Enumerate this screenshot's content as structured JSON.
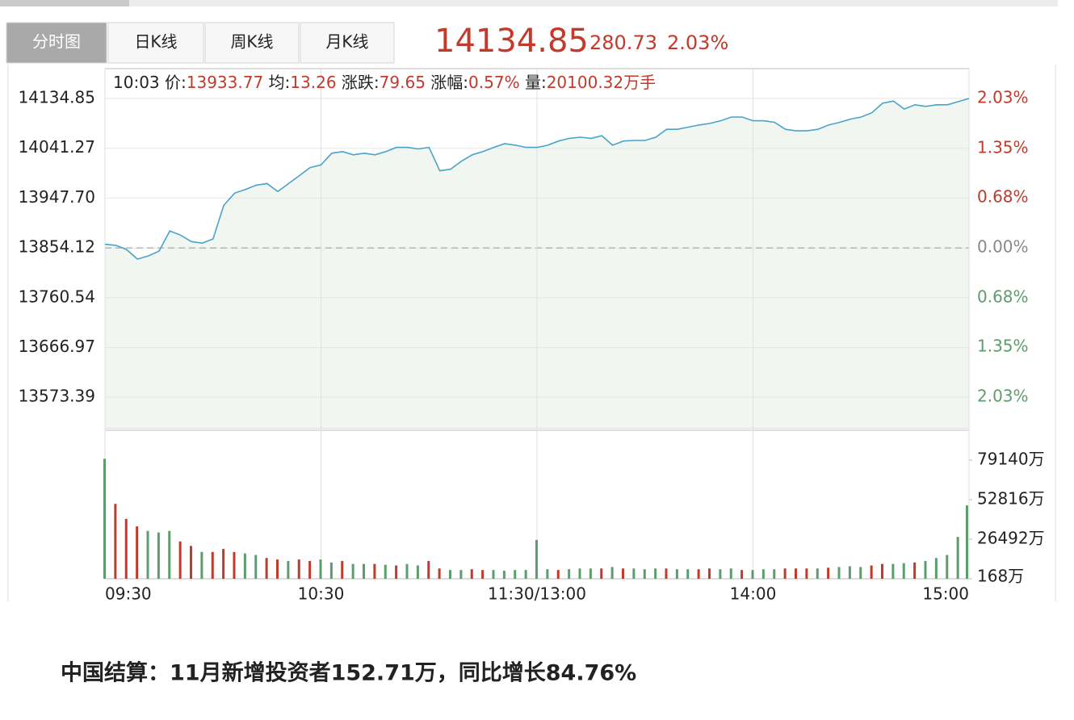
{
  "tabs": [
    "分时图",
    "日K线",
    "周K线",
    "月K线"
  ],
  "active_tab": 0,
  "quote": {
    "price": "14134.85",
    "change": "280.73",
    "change_pct": "2.03%"
  },
  "info": {
    "time": "10:03",
    "price_label": "价:",
    "price": "13933.77",
    "avg_label": "均:",
    "avg": "13.26",
    "chg_label": "涨跌:",
    "chg": "79.65",
    "pct_label": "涨幅:",
    "pct": "0.57%",
    "vol_label": "量:",
    "vol": "20100.32万手"
  },
  "headline": "中国结算：11月新增投资者152.71万，同比增长84.76%",
  "chart_data": [
    {
      "type": "line",
      "color": "#4aa3c8",
      "fill": "#f1f7f0",
      "x": [
        0,
        3,
        6,
        9,
        12,
        15,
        18,
        21,
        24,
        27,
        30,
        33,
        36,
        39,
        42,
        45,
        48,
        51,
        54,
        57,
        60,
        63,
        66,
        69,
        72,
        75,
        78,
        81,
        84,
        87,
        90,
        93,
        96,
        99,
        102,
        105,
        108,
        111,
        114,
        117,
        120,
        123,
        126,
        129,
        132,
        135,
        138,
        141,
        144,
        147,
        150,
        153,
        156,
        159,
        162,
        165,
        168,
        171,
        174,
        177,
        180,
        183,
        186,
        189,
        192,
        195,
        198,
        201,
        204,
        207,
        210,
        213,
        216,
        219,
        222,
        225,
        228,
        231,
        234,
        237,
        240
      ],
      "values": [
        13861,
        13859,
        13851,
        13833,
        13839,
        13848,
        13886,
        13878,
        13866,
        13863,
        13871,
        13934,
        13957,
        13964,
        13972,
        13975,
        13960,
        13975,
        13990,
        14005,
        14010,
        14032,
        14035,
        14029,
        14032,
        14029,
        14035,
        14043,
        14043,
        14040,
        14043,
        13999,
        14002,
        14017,
        14029,
        14035,
        14043,
        14050,
        14047,
        14043,
        14043,
        14047,
        14055,
        14060,
        14062,
        14060,
        14065,
        14047,
        14055,
        14056,
        14056,
        14062,
        14077,
        14077,
        14081,
        14085,
        14088,
        14093,
        14100,
        14100,
        14093,
        14093,
        14090,
        14077,
        14074,
        14074,
        14077,
        14085,
        14090,
        14096,
        14100,
        14108,
        14126,
        14130,
        14115,
        14123,
        14120,
        14123,
        14123,
        14129,
        14134.85
      ],
      "xlim": [
        0,
        240
      ],
      "ylim": [
        13516,
        14191
      ],
      "yticks": [
        14134.85,
        14041.27,
        {
          "value": 13947.7,
          "label": "13947.70"
        },
        13854.12,
        13760.54,
        13666.97,
        13573.39
      ],
      "y2lim": [
        -2.445,
        2.434
      ],
      "y2ticks": [
        {
          "value": 2.03,
          "label": "2.03%"
        },
        {
          "value": 1.35,
          "label": "1.35%"
        },
        {
          "value": 0.68,
          "label": "0.68%"
        },
        {
          "value": 0,
          "label": "0.00%"
        },
        {
          "value": -0.68,
          "label": "0.68%"
        },
        {
          "value": -1.35,
          "label": "1.35%"
        },
        {
          "value": -2.03,
          "label": "2.03%"
        }
      ],
      "reference_line": 13854.12,
      "grid": true
    },
    {
      "type": "bar",
      "x": [
        0,
        3,
        6,
        9,
        12,
        15,
        18,
        21,
        24,
        27,
        30,
        33,
        36,
        39,
        42,
        45,
        48,
        51,
        54,
        57,
        60,
        63,
        66,
        69,
        72,
        75,
        78,
        81,
        84,
        87,
        90,
        93,
        96,
        99,
        102,
        105,
        108,
        111,
        114,
        117,
        120,
        123,
        126,
        129,
        132,
        135,
        138,
        141,
        144,
        147,
        150,
        153,
        156,
        159,
        162,
        165,
        168,
        171,
        174,
        177,
        180,
        183,
        186,
        189,
        192,
        195,
        198,
        201,
        204,
        207,
        210,
        213,
        216,
        219,
        222,
        225,
        228,
        231,
        234,
        237,
        240
      ],
      "values": [
        80000,
        50000,
        40000,
        35000,
        32000,
        31000,
        32000,
        25000,
        22000,
        18000,
        18000,
        20000,
        18000,
        17000,
        16000,
        14000,
        13000,
        12000,
        13000,
        12000,
        13000,
        11000,
        12000,
        10000,
        10000,
        10000,
        9500,
        9000,
        10000,
        9000,
        12000,
        7000,
        6000,
        6000,
        6500,
        6000,
        6000,
        5500,
        6000,
        6000,
        26000,
        6500,
        6000,
        6500,
        7000,
        7000,
        7000,
        8000,
        7000,
        7000,
        6500,
        7000,
        7000,
        6500,
        6500,
        6500,
        7000,
        6500,
        7000,
        6000,
        6000,
        6500,
        6500,
        7000,
        7000,
        7000,
        7000,
        7500,
        8000,
        8500,
        8000,
        9000,
        10000,
        10000,
        10500,
        11000,
        12000,
        14000,
        16000,
        28000,
        49000
      ],
      "colors": [
        "#5d9c6c",
        "#c23a2b",
        "#c23a2b",
        "#c23a2b",
        "#5d9c6c",
        "#5d9c6c",
        "#5d9c6c",
        "#c23a2b",
        "#c23a2b",
        "#5d9c6c",
        "#c23a2b",
        "#c23a2b",
        "#c23a2b",
        "#5d9c6c",
        "#5d9c6c",
        "#c23a2b",
        "#c23a2b",
        "#5d9c6c",
        "#c23a2b",
        "#c23a2b",
        "#5d9c6c",
        "#5d9c6c",
        "#c23a2b",
        "#5d9c6c",
        "#5d9c6c",
        "#c23a2b",
        "#5d9c6c",
        "#c23a2b",
        "#5d9c6c",
        "#5d9c6c",
        "#c23a2b",
        "#c23a2b",
        "#5d9c6c",
        "#5d9c6c",
        "#c23a2b",
        "#c23a2b",
        "#5d9c6c",
        "#5d9c6c",
        "#5d9c6c",
        "#5d9c6c",
        "#5d9c6c",
        "#5d9c6c",
        "#c23a2b",
        "#5d9c6c",
        "#5d9c6c",
        "#5d9c6c",
        "#c23a2b",
        "#5d9c6c",
        "#c23a2b",
        "#5d9c6c",
        "#5d9c6c",
        "#5d9c6c",
        "#c23a2b",
        "#5d9c6c",
        "#5d9c6c",
        "#c23a2b",
        "#c23a2b",
        "#5d9c6c",
        "#5d9c6c",
        "#c23a2b",
        "#5d9c6c",
        "#5d9c6c",
        "#5d9c6c",
        "#c23a2b",
        "#c23a2b",
        "#c23a2b",
        "#5d9c6c",
        "#c23a2b",
        "#5d9c6c",
        "#5d9c6c",
        "#5d9c6c",
        "#c23a2b",
        "#c23a2b",
        "#5d9c6c",
        "#5d9c6c",
        "#c23a2b",
        "#5d9c6c",
        "#5d9c6c",
        "#5d9c6c",
        "#5d9c6c",
        "#5d9c6c"
      ],
      "xlim": [
        0,
        240
      ],
      "ylim": [
        168,
        99019
      ],
      "yticks": [
        {
          "value": 79140,
          "label": "79140万"
        },
        {
          "value": 52816,
          "label": "52816万"
        },
        {
          "value": 26492,
          "label": "26492万"
        },
        {
          "value": 168,
          "label": "168万"
        }
      ],
      "xticks": [
        {
          "value": 0,
          "label": "09:30"
        },
        {
          "value": 60,
          "label": "10:30"
        },
        {
          "value": 120,
          "label": "11:30/13:00"
        },
        {
          "value": 180,
          "label": "14:00"
        },
        {
          "value": 240,
          "label": "15:00"
        }
      ]
    }
  ]
}
